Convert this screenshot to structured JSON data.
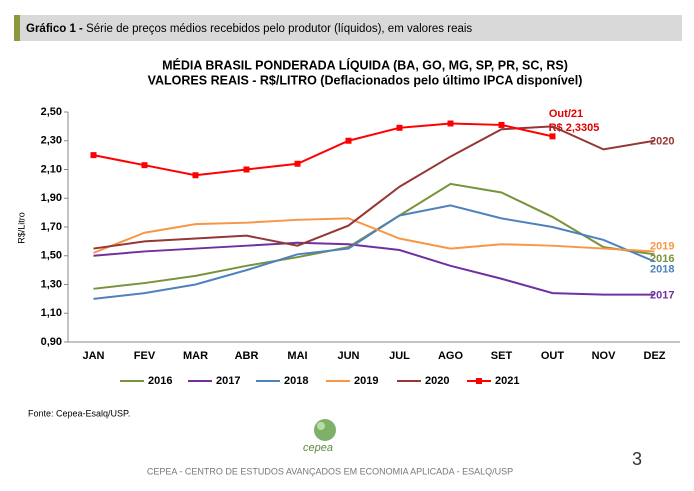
{
  "header": {
    "label": "Gráfico 1 -",
    "title": "Série de preços médios recebidos pelo produtor (líquidos), em valores reais"
  },
  "chart_data": {
    "type": "line",
    "title": [
      "MÉDIA BRASIL PONDERADA LÍQUIDA (BA, GO, MG, SP, PR, SC, RS)",
      "VALORES REAIS - R$/LITRO (Deflacionados pelo último IPCA disponível)"
    ],
    "ylabel": "R$/Litro",
    "annotation": [
      "Out/21",
      "R$ 2,3305"
    ],
    "categories": [
      "JAN",
      "FEV",
      "MAR",
      "ABR",
      "MAI",
      "JUN",
      "JUL",
      "AGO",
      "SET",
      "OUT",
      "NOV",
      "DEZ"
    ],
    "series": [
      {
        "name": "2016",
        "color": "#77933c",
        "values": [
          1.27,
          1.31,
          1.36,
          1.43,
          1.49,
          1.56,
          1.78,
          2.0,
          1.94,
          1.77,
          1.56,
          1.51
        ]
      },
      {
        "name": "2017",
        "color": "#7030a0",
        "values": [
          1.5,
          1.53,
          1.55,
          1.57,
          1.59,
          1.58,
          1.54,
          1.43,
          1.34,
          1.24,
          1.23,
          1.23
        ]
      },
      {
        "name": "2018",
        "color": "#4f81bd",
        "values": [
          1.2,
          1.24,
          1.3,
          1.4,
          1.51,
          1.55,
          1.78,
          1.85,
          1.76,
          1.7,
          1.61,
          1.46
        ]
      },
      {
        "name": "2019",
        "color": "#f79646",
        "values": [
          1.52,
          1.66,
          1.72,
          1.73,
          1.75,
          1.76,
          1.62,
          1.55,
          1.58,
          1.57,
          1.55,
          1.53
        ]
      },
      {
        "name": "2020",
        "color": "#953735",
        "values": [
          1.55,
          1.6,
          1.62,
          1.64,
          1.57,
          1.71,
          1.98,
          2.19,
          2.38,
          2.4,
          2.24,
          2.3
        ]
      },
      {
        "name": "2021",
        "color": "#ff0000",
        "markers": true,
        "values": [
          2.2,
          2.13,
          2.06,
          2.1,
          2.14,
          2.3,
          2.39,
          2.42,
          2.41,
          2.3305,
          null,
          null
        ]
      }
    ],
    "ylim": [
      0.9,
      2.5
    ],
    "yticks": [
      {
        "value": 0.9,
        "label": "0,90"
      },
      {
        "value": 1.1,
        "label": "1,10"
      },
      {
        "value": 1.3,
        "label": "1,30"
      },
      {
        "value": 1.5,
        "label": "1,50"
      },
      {
        "value": 1.7,
        "label": "1,70"
      },
      {
        "value": 1.9,
        "label": "1,90"
      },
      {
        "value": 2.1,
        "label": "2,10"
      },
      {
        "value": 2.3,
        "label": "2,30"
      },
      {
        "value": 2.5,
        "label": "2,50"
      }
    ]
  },
  "footer": {
    "source": "Fonte: Cepea-Esalq/USP.",
    "logo": "cepea",
    "text": "CEPEA - CENTRO DE ESTUDOS AVANÇADOS EM ECONOMIA APLICADA - ESALQ/USP",
    "page": "3"
  }
}
